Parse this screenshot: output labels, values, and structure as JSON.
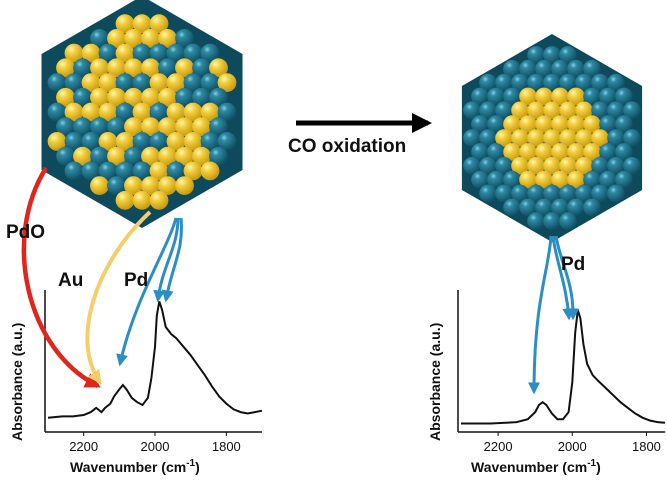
{
  "process_label": "CO oxidation",
  "labels": {
    "pdo": "PdO",
    "au": "Au",
    "pd_left": "Pd",
    "pd_right": "Pd"
  },
  "colors": {
    "pd_atom": "#1f6f86",
    "au_atom": "#efc93a",
    "pdo_arrow": "#e0251b",
    "au_arrow": "#f7d98a",
    "pd_arrow": "#2b8ec4",
    "spectrum": "#111111"
  },
  "chart_data": [
    {
      "type": "line",
      "title": "",
      "ylabel": "Absorbance (a.u.)",
      "xlabel_main": "Wavenumber (cm",
      "xlabel_sup": "-1",
      "xlabel_end": ")",
      "x_ticks": [
        "2200",
        "2000",
        "1800"
      ],
      "x_reversed": true,
      "xlim": [
        2300,
        1700
      ],
      "ylim": [
        0,
        1
      ],
      "series": [
        {
          "x": [
            2300,
            2260,
            2230,
            2200,
            2180,
            2165,
            2150,
            2140,
            2125,
            2115,
            2100,
            2090,
            2080,
            2065,
            2050,
            2035,
            2020,
            2010,
            2000,
            1995,
            1988,
            1980,
            1970,
            1955,
            1940,
            1920,
            1900,
            1880,
            1860,
            1840,
            1820,
            1800,
            1780,
            1760,
            1740,
            1720,
            1700
          ],
          "y": [
            0.1,
            0.11,
            0.11,
            0.12,
            0.14,
            0.17,
            0.14,
            0.17,
            0.2,
            0.25,
            0.3,
            0.33,
            0.3,
            0.24,
            0.21,
            0.19,
            0.24,
            0.38,
            0.6,
            0.82,
            0.92,
            0.86,
            0.74,
            0.69,
            0.66,
            0.6,
            0.54,
            0.47,
            0.4,
            0.32,
            0.25,
            0.2,
            0.16,
            0.14,
            0.13,
            0.14,
            0.15
          ]
        }
      ]
    },
    {
      "type": "line",
      "title": "",
      "ylabel": "Absorbance (a.u.)",
      "xlabel_main": "Wavenumber (cm",
      "xlabel_sup": "-1",
      "xlabel_end": ")",
      "x_ticks": [
        "2200",
        "2000",
        "1800"
      ],
      "x_reversed": true,
      "xlim": [
        2300,
        1750
      ],
      "ylim": [
        0,
        1
      ],
      "series": [
        {
          "x": [
            2300,
            2260,
            2220,
            2180,
            2150,
            2120,
            2100,
            2090,
            2080,
            2070,
            2055,
            2040,
            2025,
            2010,
            2000,
            1992,
            1985,
            1978,
            1970,
            1960,
            1945,
            1930,
            1910,
            1890,
            1870,
            1850,
            1830,
            1810,
            1790,
            1770,
            1750
          ],
          "y": [
            0.06,
            0.06,
            0.06,
            0.065,
            0.07,
            0.09,
            0.14,
            0.19,
            0.21,
            0.19,
            0.13,
            0.09,
            0.09,
            0.14,
            0.35,
            0.7,
            0.86,
            0.8,
            0.62,
            0.48,
            0.4,
            0.36,
            0.31,
            0.26,
            0.21,
            0.17,
            0.13,
            0.1,
            0.08,
            0.07,
            0.065
          ]
        }
      ]
    }
  ]
}
